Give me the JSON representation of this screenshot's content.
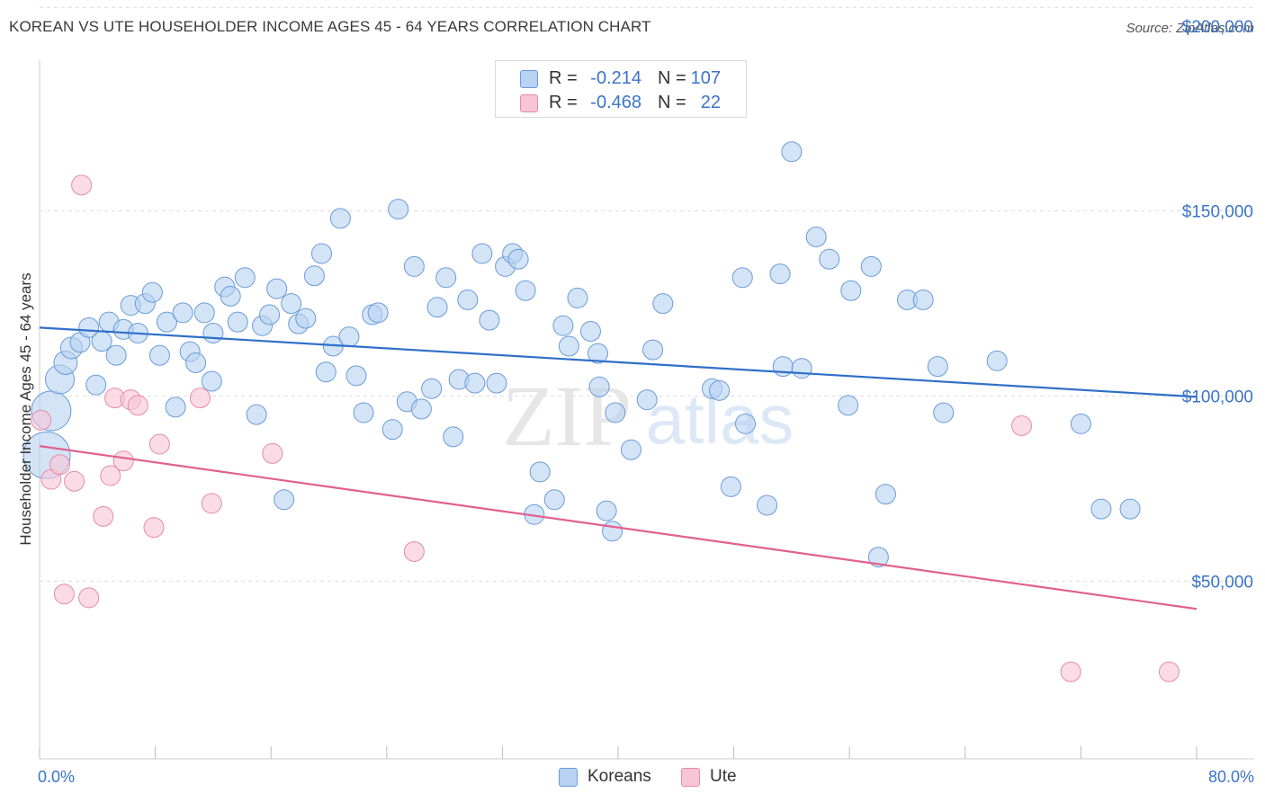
{
  "title": "KOREAN VS UTE HOUSEHOLDER INCOME AGES 45 - 64 YEARS CORRELATION CHART",
  "source": "Source: ZipAtlas.com",
  "watermark": {
    "zip": "ZIP",
    "atlas": "atlas"
  },
  "stats": [
    {
      "r_label": "R =",
      "r_value": "-0.214",
      "n_label": "N =",
      "n_value": "107",
      "color": "#b8d2f2",
      "border": "#6a9bd8"
    },
    {
      "r_label": "R =",
      "r_value": "-0.468",
      "n_label": "N =",
      "n_value": "22",
      "color": "#f8c5d5",
      "border": "#e88aa7"
    }
  ],
  "legend": [
    {
      "label": "Koreans",
      "color": "#b8d2f2",
      "border": "#6a9bd8"
    },
    {
      "label": "Ute",
      "color": "#f8c5d5",
      "border": "#e88aa7"
    }
  ],
  "chart_data": {
    "type": "scatter",
    "title": "KOREAN VS UTE HOUSEHOLDER INCOME AGES 45 - 64 YEARS CORRELATION CHART",
    "xlabel": "",
    "ylabel": "Householder Income Ages 45 - 64 years",
    "xlim": [
      0,
      80
    ],
    "ylim": [
      2000,
      207000
    ],
    "x_tick_labels": [
      {
        "value": 0,
        "label": "0.0%"
      },
      {
        "value": 80,
        "label": "80.0%"
      }
    ],
    "y_tick_labels": [
      {
        "value": 50000,
        "label": "$50,000"
      },
      {
        "value": 100000,
        "label": "$100,000"
      },
      {
        "value": 150000,
        "label": "$150,000"
      },
      {
        "value": 200000,
        "label": "$200,000"
      }
    ],
    "x_minor_ticks": [
      0,
      8,
      16,
      24,
      32,
      40,
      48,
      56,
      64,
      72,
      80
    ],
    "gridlines": [
      50000,
      100000,
      150000,
      205000
    ],
    "series": [
      {
        "name": "Koreans",
        "color": "#b8d2f2",
        "stroke": "#6a9bd8",
        "trend": {
          "x": [
            0,
            80
          ],
          "y": [
            118500,
            99800
          ],
          "color": "#2f6fc9"
        },
        "points": [
          [
            0.5,
            84000,
            26
          ],
          [
            0.8,
            96000,
            22
          ],
          [
            1.4,
            104500,
            16
          ],
          [
            1.8,
            109000,
            13
          ],
          [
            2.2,
            113000,
            12
          ],
          [
            2.8,
            114500,
            11
          ],
          [
            3.4,
            118500,
            11
          ],
          [
            3.9,
            103000,
            11
          ],
          [
            4.3,
            114800,
            11
          ],
          [
            4.8,
            120000,
            11
          ],
          [
            5.3,
            111000,
            11
          ],
          [
            5.8,
            118000,
            11
          ],
          [
            6.3,
            124500,
            11
          ],
          [
            6.8,
            117000,
            11
          ],
          [
            7.3,
            125000,
            11
          ],
          [
            7.8,
            128000,
            11
          ],
          [
            8.3,
            111000,
            11
          ],
          [
            8.8,
            120000,
            11
          ],
          [
            9.4,
            97000,
            11
          ],
          [
            9.9,
            122500,
            11
          ],
          [
            10.4,
            112000,
            11
          ],
          [
            10.8,
            109000,
            11
          ],
          [
            11.4,
            122500,
            11
          ],
          [
            12.0,
            117000,
            11
          ],
          [
            11.9,
            104000,
            11
          ],
          [
            12.8,
            129500,
            11
          ],
          [
            13.2,
            127000,
            11
          ],
          [
            13.7,
            120000,
            11
          ],
          [
            14.2,
            132000,
            11
          ],
          [
            15.0,
            95000,
            11
          ],
          [
            15.4,
            119000,
            11
          ],
          [
            15.9,
            122000,
            11
          ],
          [
            16.4,
            129000,
            11
          ],
          [
            16.9,
            72000,
            11
          ],
          [
            17.4,
            125000,
            11
          ],
          [
            17.9,
            119500,
            11
          ],
          [
            18.4,
            121000,
            11
          ],
          [
            19.0,
            132500,
            11
          ],
          [
            19.5,
            138500,
            11
          ],
          [
            19.8,
            106500,
            11
          ],
          [
            20.3,
            113500,
            11
          ],
          [
            20.8,
            148000,
            11
          ],
          [
            21.4,
            116000,
            11
          ],
          [
            21.9,
            105500,
            11
          ],
          [
            22.4,
            95500,
            11
          ],
          [
            23.0,
            122000,
            11
          ],
          [
            23.4,
            122500,
            11
          ],
          [
            24.4,
            91000,
            11
          ],
          [
            24.8,
            150500,
            11
          ],
          [
            25.4,
            98500,
            11
          ],
          [
            25.9,
            135000,
            11
          ],
          [
            26.4,
            96500,
            11
          ],
          [
            27.1,
            102000,
            11
          ],
          [
            27.5,
            124000,
            11
          ],
          [
            28.1,
            132000,
            11
          ],
          [
            28.6,
            89000,
            11
          ],
          [
            29.0,
            104500,
            11
          ],
          [
            29.6,
            126000,
            11
          ],
          [
            30.1,
            103500,
            11
          ],
          [
            30.6,
            138500,
            11
          ],
          [
            31.1,
            120500,
            11
          ],
          [
            31.6,
            103500,
            11
          ],
          [
            32.2,
            135000,
            11
          ],
          [
            32.7,
            138500,
            11
          ],
          [
            33.1,
            137000,
            11
          ],
          [
            33.6,
            128500,
            11
          ],
          [
            34.2,
            68000,
            11
          ],
          [
            34.6,
            79500,
            11
          ],
          [
            35.6,
            72000,
            11
          ],
          [
            36.2,
            119000,
            11
          ],
          [
            36.6,
            113500,
            11
          ],
          [
            37.2,
            126500,
            11
          ],
          [
            38.1,
            117500,
            11
          ],
          [
            38.6,
            111500,
            11
          ],
          [
            38.7,
            102500,
            11
          ],
          [
            39.2,
            69000,
            11
          ],
          [
            39.6,
            63500,
            11
          ],
          [
            39.8,
            95500,
            11
          ],
          [
            40.9,
            85500,
            11
          ],
          [
            42.0,
            99000,
            11
          ],
          [
            42.4,
            112500,
            11
          ],
          [
            43.1,
            125000,
            11
          ],
          [
            46.5,
            102000,
            11
          ],
          [
            47.0,
            101500,
            11
          ],
          [
            47.8,
            75500,
            11
          ],
          [
            48.6,
            132000,
            11
          ],
          [
            48.8,
            92500,
            11
          ],
          [
            50.3,
            70500,
            11
          ],
          [
            51.2,
            133000,
            11
          ],
          [
            51.4,
            108000,
            11
          ],
          [
            52.0,
            166000,
            11
          ],
          [
            52.7,
            107500,
            11
          ],
          [
            53.7,
            143000,
            11
          ],
          [
            54.6,
            137000,
            11
          ],
          [
            55.9,
            97500,
            11
          ],
          [
            56.1,
            128500,
            11
          ],
          [
            57.5,
            135000,
            11
          ],
          [
            58.0,
            56500,
            11
          ],
          [
            58.5,
            73500,
            11
          ],
          [
            60.0,
            126000,
            11
          ],
          [
            61.1,
            126000,
            11
          ],
          [
            62.1,
            108000,
            11
          ],
          [
            62.5,
            95500,
            11
          ],
          [
            66.2,
            109500,
            11
          ],
          [
            72.0,
            92500,
            11
          ],
          [
            73.4,
            69500,
            11
          ],
          [
            75.4,
            69500,
            11
          ]
        ]
      },
      {
        "name": "Ute",
        "color": "#f8c5d5",
        "stroke": "#e88aa7",
        "trend": {
          "x": [
            0,
            80
          ],
          "y": [
            86500,
            42500
          ],
          "color": "#e2608d"
        },
        "points": [
          [
            0.1,
            93500,
            11
          ],
          [
            0.8,
            77500,
            11
          ],
          [
            1.4,
            81500,
            11
          ],
          [
            1.7,
            46500,
            11
          ],
          [
            2.4,
            77000,
            11
          ],
          [
            2.9,
            157000,
            11
          ],
          [
            3.4,
            45500,
            11
          ],
          [
            4.4,
            67500,
            11
          ],
          [
            4.9,
            78500,
            11
          ],
          [
            5.2,
            99500,
            11
          ],
          [
            5.8,
            82500,
            11
          ],
          [
            6.3,
            99000,
            11
          ],
          [
            6.8,
            97500,
            11
          ],
          [
            7.9,
            64500,
            11
          ],
          [
            8.3,
            87000,
            11
          ],
          [
            11.1,
            99500,
            11
          ],
          [
            11.9,
            71000,
            11
          ],
          [
            16.1,
            84500,
            11
          ],
          [
            25.9,
            58000,
            11
          ],
          [
            67.9,
            92000,
            11
          ],
          [
            71.3,
            25500,
            11
          ],
          [
            78.1,
            25500,
            11
          ]
        ]
      }
    ]
  }
}
